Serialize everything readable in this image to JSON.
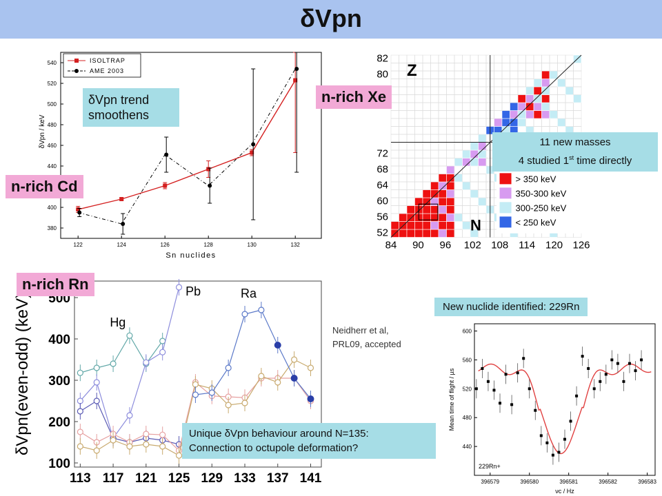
{
  "slide": {
    "title": "δVpn",
    "bg_color": "#a9c3ef",
    "accent_pink": "#f2a9d6",
    "accent_cyan": "#a6dde6"
  },
  "labels": {
    "cd": "n-rich Cd",
    "xe": "n-rich Xe",
    "rn": "n-rich Rn"
  },
  "notes": {
    "trend_line1": "δVpn trend",
    "trend_line2": "smoothens",
    "masses_line1": "11 new masses",
    "masses_line2_pre": "4 studied 1",
    "masses_line2_sup": "st",
    "masses_line2_post": " time directly",
    "new_nuclide": "New nuclide identified: 229Rn",
    "unique_line1": "Unique δVpn behaviour around N=135:",
    "unique_line2": "Connection to octupole deformation?",
    "ref_line1": "Neidherr et al,",
    "ref_line2": "PRL09, accepted"
  },
  "chart_data": [
    {
      "type": "line",
      "xlabel": "Sn nuclides",
      "ylabel": "δVpn / keV",
      "ylim": [
        370,
        550
      ],
      "x_ticks": [
        122,
        124,
        126,
        128,
        130,
        132
      ],
      "y_ticks": [
        380,
        400,
        420,
        440,
        460,
        480,
        500,
        520,
        540
      ],
      "legend": "top-left",
      "series": [
        {
          "name": "ISOLTRAP",
          "color": "#d42020",
          "x": [
            122,
            124,
            126,
            128,
            130,
            132
          ],
          "y": [
            398,
            408,
            421,
            437,
            453,
            523
          ],
          "err": [
            3,
            1,
            3,
            8,
            3,
            70
          ]
        },
        {
          "name": "AME 2003",
          "color": "#000000",
          "x": [
            122,
            124,
            126,
            128,
            130,
            132
          ],
          "y": [
            395,
            384,
            451,
            421,
            461,
            534
          ],
          "err": [
            4,
            10,
            17,
            17,
            73,
            100
          ]
        }
      ]
    },
    {
      "type": "heatmap",
      "xlabel": "N",
      "ylabel": "Z",
      "x_ticks": [
        84,
        90,
        96,
        102,
        108,
        114,
        120,
        126
      ],
      "y_ticks": [
        52,
        56,
        60,
        64,
        68,
        72,
        80,
        82
      ],
      "legend_entries": [
        "> 350 keV",
        "350-300 keV",
        "300-250 keV",
        "< 250 keV"
      ],
      "legend_colors": [
        "#ee1111",
        "#d79bf0",
        "#c4ecf5",
        "#3366e6"
      ]
    },
    {
      "type": "line",
      "ylabel": "δVpn(even-odd) (keV)",
      "ylim": [
        90,
        540
      ],
      "x_ticks": [
        113,
        117,
        121,
        125,
        129,
        133,
        137,
        141
      ],
      "y_ticks": [
        100,
        200,
        300,
        400,
        500
      ],
      "annotations": [
        "Pb",
        "Hg",
        "Ra"
      ],
      "series": [
        {
          "color": "#62a8a8",
          "x": [
            113,
            115,
            117,
            119,
            121,
            123
          ],
          "y": [
            318,
            330,
            340,
            408,
            340,
            395
          ]
        },
        {
          "color": "#8c8cdc",
          "x": [
            113,
            115,
            117,
            119,
            121,
            123,
            125
          ],
          "y": [
            250,
            295,
            160,
            215,
            343,
            368,
            525
          ]
        },
        {
          "color": "#5a5ab4",
          "x": [
            113,
            115,
            117,
            119,
            121,
            123,
            125
          ],
          "y": [
            225,
            250,
            160,
            150,
            160,
            155,
            145
          ]
        },
        {
          "color": "#e6a0a0",
          "x": [
            113,
            115,
            117,
            119,
            121,
            123,
            125,
            127,
            129,
            131,
            133,
            135,
            137,
            139,
            141
          ],
          "y": [
            175,
            150,
            170,
            150,
            170,
            168,
            130,
            295,
            262,
            260,
            258,
            305,
            305,
            305,
            250
          ]
        },
        {
          "color": "#c8aa6e",
          "x": [
            113,
            115,
            117,
            119,
            121,
            123,
            125,
            127,
            129,
            131,
            133,
            135,
            137,
            139,
            141
          ],
          "y": [
            140,
            130,
            155,
            140,
            145,
            140,
            118,
            290,
            280,
            240,
            245,
            310,
            295,
            350,
            330
          ]
        },
        {
          "color": "#5a78c8",
          "x": [
            127,
            129,
            131,
            133,
            135,
            137,
            139,
            141
          ],
          "y": [
            265,
            270,
            330,
            460,
            470,
            385,
            305,
            255
          ]
        }
      ]
    },
    {
      "type": "scatter",
      "xlabel": "νc / Hz",
      "ylabel": "Mean time of flight / µs",
      "annotation": "229Rn+",
      "xlim": [
        396578.6,
        396583.2
      ],
      "ylim": [
        400,
        610
      ],
      "x_ticks": [
        396579,
        396580,
        396581,
        396582,
        396583
      ],
      "y_ticks": [
        440,
        480,
        520,
        560,
        600
      ],
      "points_x": [
        396578.65,
        396578.8,
        396578.95,
        396579.1,
        396579.25,
        396579.4,
        396579.55,
        396579.7,
        396579.85,
        396580.0,
        396580.15,
        396580.3,
        396580.45,
        396580.6,
        396580.75,
        396580.9,
        396581.05,
        396581.2,
        396581.35,
        396581.5,
        396581.65,
        396581.8,
        396581.95,
        396582.1,
        396582.25,
        396582.4,
        396582.55,
        396582.7,
        396582.85
      ],
      "points_y": [
        520,
        548,
        530,
        518,
        500,
        540,
        498,
        542,
        562,
        520,
        490,
        455,
        445,
        428,
        432,
        450,
        475,
        510,
        565,
        548,
        520,
        530,
        540,
        560,
        555,
        530,
        555,
        545,
        560
      ],
      "fit_color": "#e04040"
    }
  ]
}
